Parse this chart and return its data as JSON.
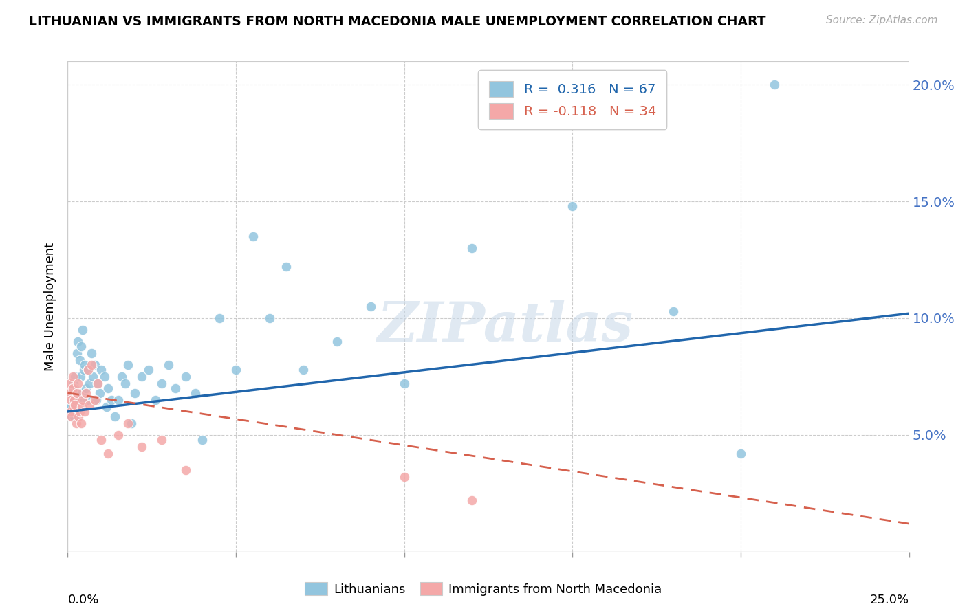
{
  "title": "LITHUANIAN VS IMMIGRANTS FROM NORTH MACEDONIA MALE UNEMPLOYMENT CORRELATION CHART",
  "source": "Source: ZipAtlas.com",
  "ylabel": "Male Unemployment",
  "xlim": [
    0.0,
    0.25
  ],
  "ylim": [
    0.0,
    0.21
  ],
  "yticks": [
    0.05,
    0.1,
    0.15,
    0.2
  ],
  "ytick_labels": [
    "5.0%",
    "10.0%",
    "15.0%",
    "20.0%"
  ],
  "blue_color": "#92c5de",
  "pink_color": "#f4a8a8",
  "blue_line_color": "#2166ac",
  "pink_line_color": "#d6604d",
  "background_color": "#ffffff",
  "blue_x": [
    0.0008,
    0.001,
    0.001,
    0.001,
    0.0012,
    0.0015,
    0.0015,
    0.0018,
    0.002,
    0.002,
    0.0022,
    0.0025,
    0.0028,
    0.003,
    0.0032,
    0.0035,
    0.0038,
    0.004,
    0.0042,
    0.0045,
    0.0048,
    0.005,
    0.0055,
    0.0058,
    0.006,
    0.0065,
    0.007,
    0.0075,
    0.008,
    0.0085,
    0.009,
    0.0095,
    0.01,
    0.011,
    0.0115,
    0.012,
    0.013,
    0.014,
    0.015,
    0.016,
    0.017,
    0.018,
    0.019,
    0.02,
    0.022,
    0.024,
    0.026,
    0.028,
    0.03,
    0.032,
    0.035,
    0.038,
    0.04,
    0.045,
    0.05,
    0.055,
    0.06,
    0.065,
    0.07,
    0.08,
    0.09,
    0.1,
    0.12,
    0.15,
    0.18,
    0.2,
    0.21
  ],
  "blue_y": [
    0.063,
    0.06,
    0.062,
    0.066,
    0.058,
    0.065,
    0.068,
    0.072,
    0.058,
    0.07,
    0.075,
    0.068,
    0.085,
    0.09,
    0.065,
    0.082,
    0.075,
    0.088,
    0.068,
    0.095,
    0.078,
    0.08,
    0.07,
    0.065,
    0.078,
    0.072,
    0.085,
    0.075,
    0.08,
    0.065,
    0.072,
    0.068,
    0.078,
    0.075,
    0.062,
    0.07,
    0.065,
    0.058,
    0.065,
    0.075,
    0.072,
    0.08,
    0.055,
    0.068,
    0.075,
    0.078,
    0.065,
    0.072,
    0.08,
    0.07,
    0.075,
    0.068,
    0.048,
    0.1,
    0.078,
    0.135,
    0.1,
    0.122,
    0.078,
    0.09,
    0.105,
    0.072,
    0.13,
    0.148,
    0.103,
    0.042,
    0.2
  ],
  "pink_x": [
    0.0005,
    0.0008,
    0.001,
    0.001,
    0.0012,
    0.0015,
    0.0015,
    0.0018,
    0.002,
    0.0022,
    0.0025,
    0.0028,
    0.003,
    0.0032,
    0.0035,
    0.004,
    0.0042,
    0.0045,
    0.005,
    0.0055,
    0.006,
    0.0065,
    0.007,
    0.008,
    0.009,
    0.01,
    0.012,
    0.015,
    0.018,
    0.022,
    0.028,
    0.035,
    0.1,
    0.12
  ],
  "pink_y": [
    0.068,
    0.072,
    0.065,
    0.06,
    0.058,
    0.07,
    0.075,
    0.062,
    0.065,
    0.063,
    0.055,
    0.068,
    0.072,
    0.058,
    0.06,
    0.055,
    0.062,
    0.065,
    0.06,
    0.068,
    0.078,
    0.063,
    0.08,
    0.065,
    0.072,
    0.048,
    0.042,
    0.05,
    0.055,
    0.045,
    0.048,
    0.035,
    0.032,
    0.022
  ],
  "blue_trend_x": [
    0.0,
    0.25
  ],
  "blue_trend_y": [
    0.06,
    0.102
  ],
  "pink_trend_x": [
    0.0,
    0.25
  ],
  "pink_trend_y": [
    0.068,
    0.012
  ]
}
